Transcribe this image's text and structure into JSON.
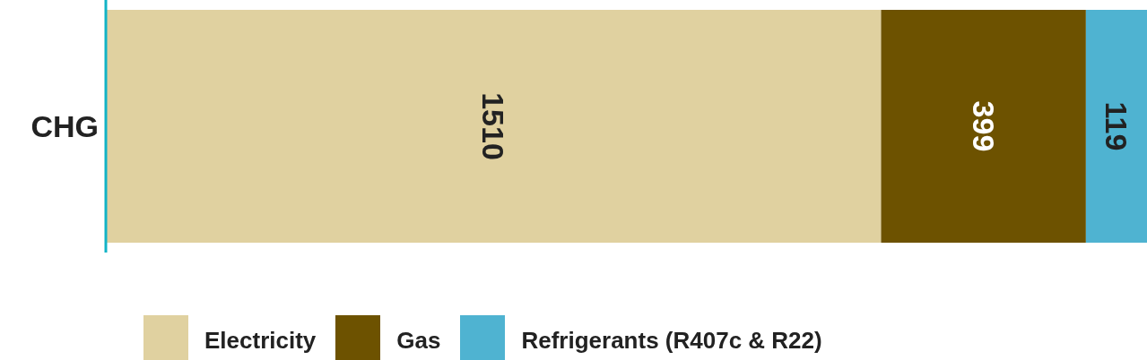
{
  "chart_data": {
    "type": "bar",
    "orientation": "horizontal",
    "stacked": true,
    "categories": [
      "CHG"
    ],
    "series": [
      {
        "name": "Electricity",
        "color": "#e0d1a0",
        "values": [
          1510
        ]
      },
      {
        "name": "Gas",
        "color": "#6d5200",
        "values": [
          399
        ]
      },
      {
        "name": "Refrigerants (R407c & R22)",
        "color": "#4fb3d1",
        "values": [
          119
        ]
      }
    ],
    "data_labels": true,
    "legend": "bottom",
    "grid": false
  }
}
